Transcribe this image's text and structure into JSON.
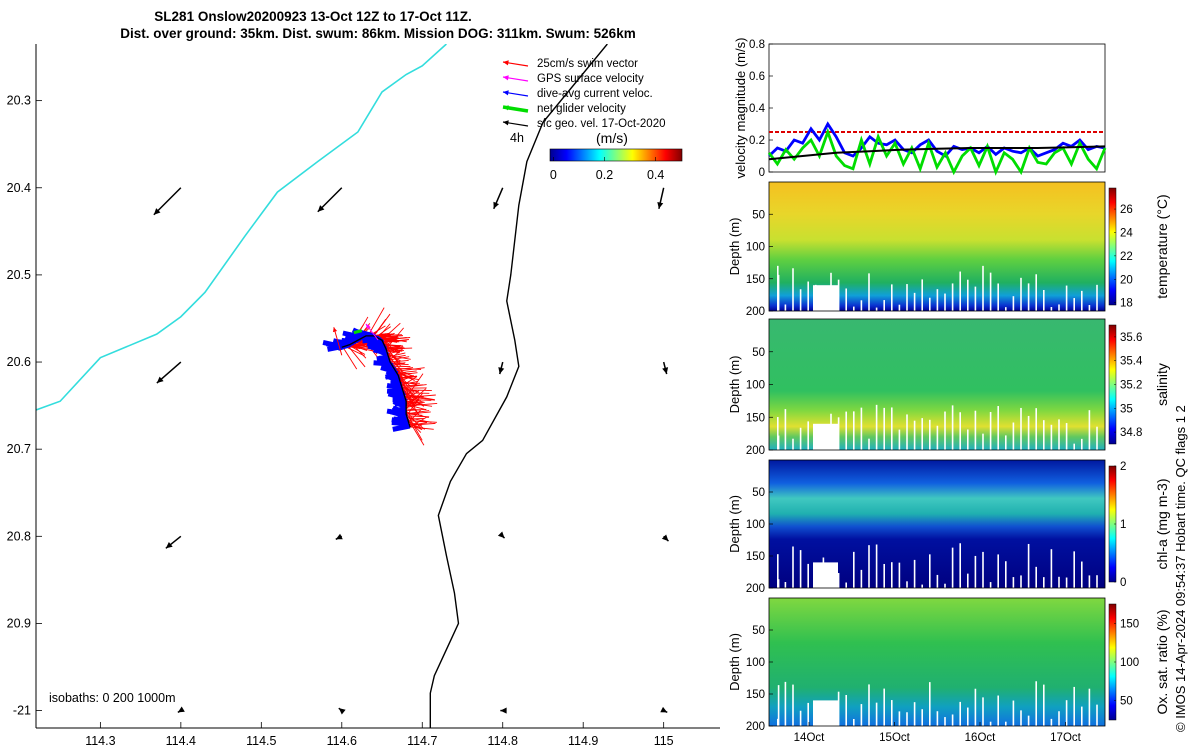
{
  "title": {
    "line1": "SL281 Onslow20200923 13-Oct 12Z to 17-Oct 11Z.",
    "line2": "Dist. over ground: 35km. Dist. swum: 86km. Mission DOG: 311km. Swum: 526km"
  },
  "legend": {
    "items": [
      {
        "label": "25cm/s swim vector",
        "color": "#ff0000"
      },
      {
        "label": "GPS surface velocity",
        "color": "#ff00ff"
      },
      {
        "label": "dive-avg current veloc.",
        "color": "#0000ff"
      },
      {
        "label": "net glider velocity",
        "color": "#00dd00"
      },
      {
        "label": "sfc geo. vel. 17-Oct-2020",
        "color": "#000000"
      }
    ],
    "time_label": "4h",
    "colorbar_unit": "(m/s)",
    "colorbar_ticks": [
      "0",
      "0.2",
      "0.4"
    ]
  },
  "isobaths_label": "isobaths: 0   200  1000m",
  "footer_label": "© IMOS 14-Apr-2024 09:54:37 Hobart time. QC flags 1  2",
  "colors": {
    "isobath_0": "#33dddd",
    "isobath_1000": "#000000",
    "swim": "#ff0000",
    "current": "#0000ff",
    "net": "#00dd00",
    "threshold": "#dd0000"
  },
  "chart_data": [
    {
      "type": "line",
      "name": "map",
      "x_ticks": [
        "114.3",
        "114.4",
        "114.5",
        "114.6",
        "114.7",
        "114.8",
        "114.9",
        "115"
      ],
      "y_ticks": [
        "20.3",
        "20.4",
        "20.5",
        "20.6",
        "20.7",
        "20.8",
        "20.9",
        "-21"
      ],
      "xlim": [
        114.22,
        115.07
      ],
      "ylim": [
        -21.02,
        -20.235
      ],
      "isobath_0m": [
        [
          114.22,
          -20.655
        ],
        [
          114.25,
          -20.645
        ],
        [
          114.3,
          -20.595
        ],
        [
          114.37,
          -20.568
        ],
        [
          114.4,
          -20.548
        ],
        [
          114.43,
          -20.52
        ],
        [
          114.48,
          -20.455
        ],
        [
          114.5,
          -20.43
        ],
        [
          114.52,
          -20.405
        ],
        [
          114.57,
          -20.37
        ],
        [
          114.62,
          -20.336
        ],
        [
          114.65,
          -20.29
        ],
        [
          114.68,
          -20.27
        ],
        [
          114.7,
          -20.26
        ],
        [
          114.73,
          -20.235
        ]
      ],
      "isobath_1000m": [
        [
          114.93,
          -20.235
        ],
        [
          114.85,
          -20.325
        ],
        [
          114.83,
          -20.37
        ],
        [
          114.82,
          -20.42
        ],
        [
          114.81,
          -20.5
        ],
        [
          114.805,
          -20.53
        ],
        [
          114.815,
          -20.575
        ],
        [
          114.82,
          -20.605
        ],
        [
          114.805,
          -20.64
        ],
        [
          114.775,
          -20.69
        ],
        [
          114.755,
          -20.705
        ],
        [
          114.735,
          -20.737
        ],
        [
          114.72,
          -20.776
        ],
        [
          114.73,
          -20.822
        ],
        [
          114.74,
          -20.865
        ],
        [
          114.745,
          -20.9
        ],
        [
          114.73,
          -20.93
        ],
        [
          114.715,
          -20.96
        ],
        [
          114.71,
          -20.98
        ],
        [
          114.71,
          -21.02
        ]
      ],
      "geo_vectors": [
        {
          "lon": 114.4,
          "lat": -20.4,
          "u": -0.45,
          "v": -0.45
        },
        {
          "lon": 114.6,
          "lat": -20.4,
          "u": -0.4,
          "v": -0.4
        },
        {
          "lon": 114.8,
          "lat": -20.4,
          "u": -0.15,
          "v": -0.35
        },
        {
          "lon": 115.0,
          "lat": -20.4,
          "u": -0.08,
          "v": -0.35
        },
        {
          "lon": 114.4,
          "lat": -20.6,
          "u": -0.4,
          "v": -0.35
        },
        {
          "lon": 114.8,
          "lat": -20.6,
          "u": -0.05,
          "v": -0.2
        },
        {
          "lon": 115.0,
          "lat": -20.6,
          "u": 0.05,
          "v": -0.2
        },
        {
          "lon": 114.4,
          "lat": -20.8,
          "u": -0.25,
          "v": -0.2
        },
        {
          "lon": 114.6,
          "lat": -20.8,
          "u": -0.1,
          "v": -0.05
        },
        {
          "lon": 114.8,
          "lat": -20.8,
          "u": 0.03,
          "v": -0.03
        },
        {
          "lon": 115.0,
          "lat": -20.8,
          "u": 0.08,
          "v": -0.08
        },
        {
          "lon": 114.4,
          "lat": -21.0,
          "u": -0.05,
          "v": -0.03
        },
        {
          "lon": 114.6,
          "lat": -21.0,
          "u": -0.05,
          "v": 0.04
        },
        {
          "lon": 114.8,
          "lat": -21.0,
          "u": -0.04,
          "v": 0.0
        },
        {
          "lon": 115.0,
          "lat": -21.0,
          "u": 0.06,
          "v": -0.03
        }
      ],
      "glider_track": [
        [
          114.6,
          -20.583
        ],
        [
          114.61,
          -20.58
        ],
        [
          114.62,
          -20.575
        ],
        [
          114.63,
          -20.57
        ],
        [
          114.64,
          -20.57
        ],
        [
          114.65,
          -20.575
        ],
        [
          114.655,
          -20.585
        ],
        [
          114.66,
          -20.6
        ],
        [
          114.67,
          -20.615
        ],
        [
          114.675,
          -20.63
        ],
        [
          114.68,
          -20.645
        ],
        [
          114.68,
          -20.66
        ],
        [
          114.685,
          -20.675
        ]
      ]
    },
    {
      "type": "line",
      "name": "velocity",
      "ylabel": "velocity magnitude (m/s)",
      "y_ticks": [
        "0",
        "0.2",
        "0.4",
        "0.6",
        "0.8"
      ],
      "ylim": [
        0,
        0.8
      ],
      "xlim": [
        13.5,
        17.5
      ],
      "threshold": 0.25,
      "series": [
        {
          "color": "#0000ff",
          "x": [
            13.5,
            13.6,
            13.7,
            13.8,
            13.9,
            14.0,
            14.1,
            14.2,
            14.3,
            14.4,
            14.5,
            14.6,
            14.7,
            14.8,
            14.9,
            15.0,
            15.1,
            15.2,
            15.3,
            15.4,
            15.5,
            15.6,
            15.7,
            15.8,
            15.9,
            16.0,
            16.1,
            16.2,
            16.3,
            16.4,
            16.5,
            16.6,
            16.7,
            16.8,
            16.9,
            17.0,
            17.1,
            17.2,
            17.3,
            17.4,
            17.5
          ],
          "y": [
            0.1,
            0.15,
            0.13,
            0.2,
            0.18,
            0.27,
            0.2,
            0.3,
            0.22,
            0.12,
            0.1,
            0.15,
            0.22,
            0.18,
            0.17,
            0.2,
            0.14,
            0.12,
            0.17,
            0.2,
            0.13,
            0.1,
            0.16,
            0.14,
            0.15,
            0.12,
            0.16,
            0.11,
            0.15,
            0.13,
            0.12,
            0.15,
            0.1,
            0.12,
            0.14,
            0.18,
            0.16,
            0.2,
            0.14,
            0.16,
            0.15
          ]
        },
        {
          "color": "#00dd00",
          "x": [
            13.5,
            13.6,
            13.7,
            13.8,
            13.9,
            14.0,
            14.1,
            14.2,
            14.3,
            14.4,
            14.5,
            14.6,
            14.7,
            14.8,
            14.9,
            15.0,
            15.1,
            15.2,
            15.3,
            15.4,
            15.5,
            15.6,
            15.7,
            15.8,
            15.9,
            16.0,
            16.1,
            16.2,
            16.3,
            16.4,
            16.5,
            16.6,
            16.7,
            16.8,
            16.9,
            17.0,
            17.1,
            17.2,
            17.3,
            17.4,
            17.5
          ],
          "y": [
            0.12,
            0.05,
            0.14,
            0.08,
            0.15,
            0.2,
            0.1,
            0.25,
            0.1,
            0.04,
            0.02,
            0.2,
            0.05,
            0.22,
            0.1,
            0.18,
            0.05,
            0.15,
            0.02,
            0.18,
            0.03,
            0.12,
            0.0,
            0.1,
            0.15,
            0.04,
            0.16,
            0.0,
            0.12,
            0.08,
            0.0,
            0.15,
            0.06,
            0.05,
            0.12,
            0.15,
            0.05,
            0.18,
            0.08,
            0.02,
            0.15
          ]
        },
        {
          "color": "#000000",
          "x": [
            13.5,
            13.9,
            14.3,
            14.7,
            15.1,
            15.5,
            15.9,
            16.3,
            16.7,
            17.1,
            17.5
          ],
          "y": [
            0.08,
            0.1,
            0.12,
            0.13,
            0.14,
            0.145,
            0.15,
            0.15,
            0.15,
            0.155,
            0.16
          ]
        }
      ]
    },
    {
      "type": "heatmap",
      "name": "temperature",
      "ylabel": "Depth (m)",
      "clabel": "temperature (°C)",
      "y_ticks": [
        "50",
        "100",
        "150",
        "200"
      ],
      "ylim": [
        200,
        0
      ],
      "color_ticks": [
        "18",
        "20",
        "22",
        "24",
        "26"
      ],
      "clim": [
        17.8,
        27.8
      ]
    },
    {
      "type": "heatmap",
      "name": "salinity",
      "ylabel": "Depth (m)",
      "clabel": "salinity",
      "y_ticks": [
        "50",
        "100",
        "150",
        "200"
      ],
      "ylim": [
        200,
        0
      ],
      "color_ticks": [
        "34.8",
        "35",
        "35.2",
        "35.4",
        "35.6"
      ],
      "clim": [
        34.7,
        35.7
      ]
    },
    {
      "type": "heatmap",
      "name": "chl-a",
      "ylabel": "Depth (m)",
      "clabel": "chl-a (mg m-3)",
      "y_ticks": [
        "50",
        "100",
        "150",
        "200"
      ],
      "ylim": [
        200,
        0
      ],
      "color_ticks": [
        "0",
        "1",
        "2"
      ],
      "clim": [
        0,
        2
      ]
    },
    {
      "type": "heatmap",
      "name": "oxygen",
      "ylabel": "Depth (m)",
      "clabel": "Ox. sat. ratio (%)",
      "y_ticks": [
        "50",
        "100",
        "150",
        "200"
      ],
      "ylim": [
        200,
        0
      ],
      "color_ticks": [
        "50",
        "100",
        "150"
      ],
      "clim": [
        25,
        175
      ],
      "x_ticks": [
        "14Oct",
        "15Oct",
        "16Oct",
        "17Oct"
      ]
    }
  ]
}
